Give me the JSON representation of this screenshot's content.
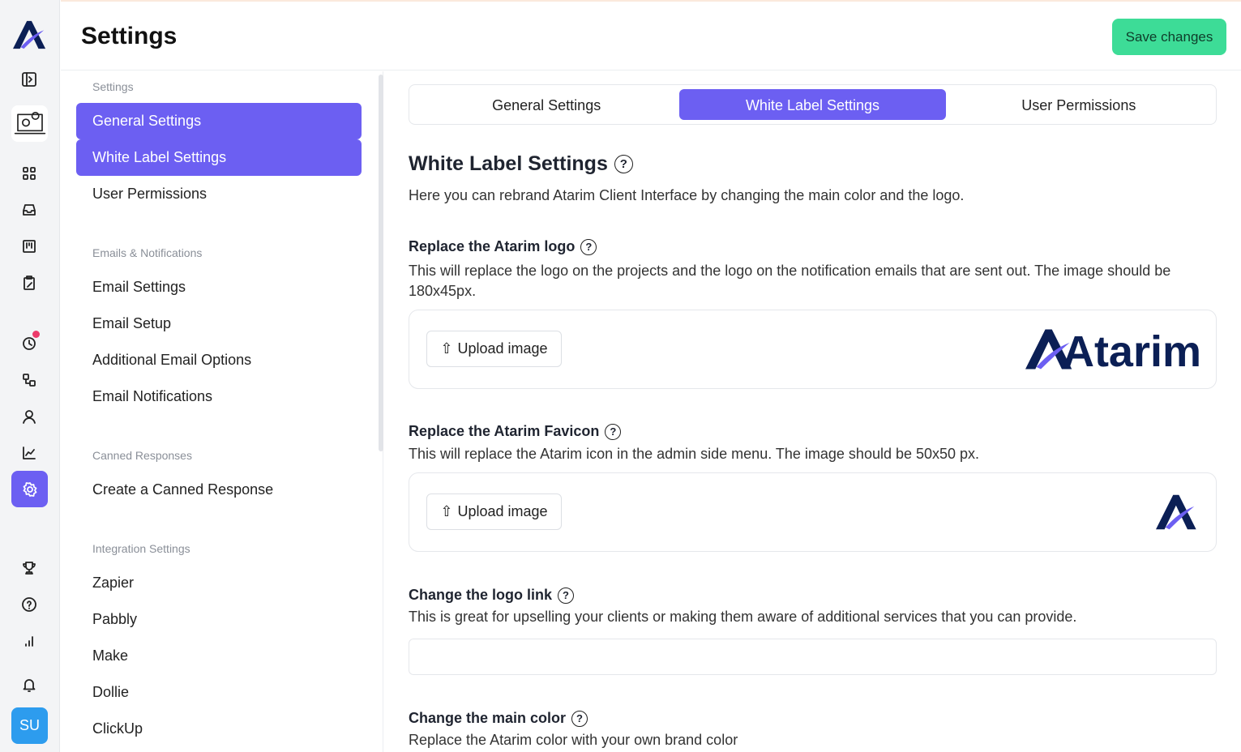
{
  "header": {
    "title": "Settings",
    "save_label": "Save changes"
  },
  "colors": {
    "accent": "#6c5ff2",
    "save": "#3ddc97",
    "avatar": "#2d9cee",
    "logo_navy": "#0b1f55"
  },
  "rail": {
    "avatar_initials": "SU",
    "icons": [
      "atarim-logo",
      "sidebar-toggle-icon",
      "settings-laptop-icon",
      "grid-icon",
      "inbox-icon",
      "board-icon",
      "clipboard-icon",
      "clock-icon",
      "workflow-icon",
      "user-icon",
      "chart-icon",
      "gear-icon",
      "trophy-icon",
      "help-icon",
      "signal-icon",
      "bell-icon"
    ]
  },
  "sidebar": {
    "groups": [
      {
        "label": "Settings",
        "items": [
          "General Settings",
          "White Label Settings",
          "User Permissions"
        ]
      },
      {
        "label": "Emails & Notifications",
        "items": [
          "Email Settings",
          "Email Setup",
          "Additional Email Options",
          "Email Notifications"
        ]
      },
      {
        "label": "Canned Responses",
        "items": [
          "Create a Canned Response"
        ]
      },
      {
        "label": "Integration Settings",
        "items": [
          "Zapier",
          "Pabbly",
          "Make",
          "Dollie",
          "ClickUp"
        ]
      }
    ]
  },
  "tabs": [
    "General Settings",
    "White Label Settings",
    "User Permissions"
  ],
  "main": {
    "title": "White Label Settings",
    "intro": "Here you can rebrand Atarim Client Interface by changing the main color and the logo.",
    "logo": {
      "title": "Replace the Atarim logo",
      "desc": "This will replace the logo on the projects and the logo on the notification emails that are sent out. The image should be 180x45px.",
      "button": "Upload image",
      "logo_text": "Atarim"
    },
    "favicon": {
      "title": "Replace the Atarim Favicon",
      "desc": "This will replace the Atarim icon in the admin side menu. The image should be 50x50 px.",
      "button": "Upload image"
    },
    "link": {
      "title": "Change the logo link",
      "desc": "This is great for upselling your clients or making them aware of additional services that you can provide.",
      "value": ""
    },
    "color": {
      "title": "Change the main color",
      "desc": "Replace the Atarim color with your own brand color"
    }
  }
}
